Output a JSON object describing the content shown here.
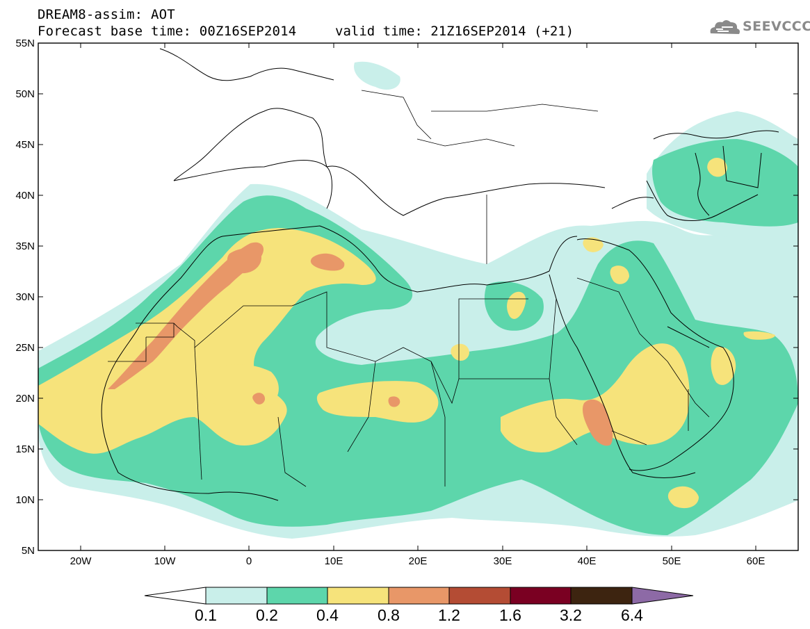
{
  "title": {
    "line1": "DREAM8-assim: AOT",
    "line2": "Forecast base time: 00Z16SEP2014",
    "valid": "valid time: 21Z16SEP2014 (+21)"
  },
  "logo": {
    "text": "SEEVCCC",
    "icon": "cloud-icon"
  },
  "axes": {
    "lat_ticks": [
      "55N",
      "50N",
      "45N",
      "40N",
      "35N",
      "30N",
      "25N",
      "20N",
      "15N",
      "10N",
      "5N"
    ],
    "lon_ticks": [
      "20W",
      "10W",
      "0",
      "10E",
      "20E",
      "30E",
      "40E",
      "50E",
      "60E"
    ]
  },
  "colorbar": {
    "labels": [
      "0.1",
      "0.2",
      "0.4",
      "0.8",
      "1.2",
      "1.6",
      "3.2",
      "6.4"
    ],
    "colors": [
      "#ffffff",
      "#c9efea",
      "#5dd6ab",
      "#f6e37b",
      "#e89768",
      "#b44c34",
      "#7a0022",
      "#3d2410",
      "#8d6aa6"
    ]
  },
  "colors": {
    "level_0_1": "#c9efea",
    "level_0_2": "#5dd6ab",
    "level_0_4": "#f6e37b",
    "level_0_8": "#e89768",
    "level_1_2": "#b44c34",
    "frame": "#000000",
    "logo": "#8a8a8a"
  }
}
